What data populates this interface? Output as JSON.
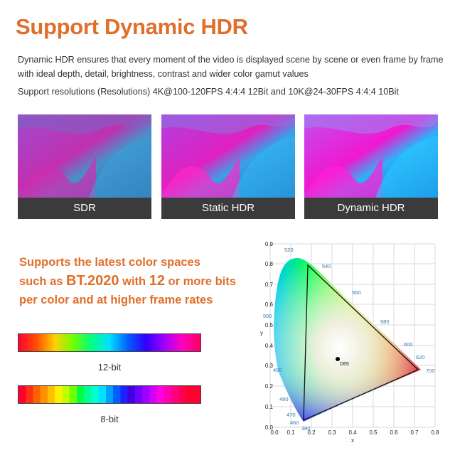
{
  "header": {
    "title": "Support Dynamic HDR",
    "description": "Dynamic HDR ensures that every moment of the video is displayed scene by scene or even frame by frame with ideal depth, detail, brightness, contrast and wider color gamut values",
    "resolutions": "Support resolutions (Resolutions) 4K@100-120FPS 4:4:4 12Bit and 10K@24-30FPS 4:4:4 10Bit"
  },
  "panels": [
    {
      "label": "SDR"
    },
    {
      "label": "Static HDR"
    },
    {
      "label": "Dynamic HDR"
    }
  ],
  "colorspace": {
    "line1": "Supports the latest color spaces",
    "line2a": "such as ",
    "line2b": "BT.2020",
    "line2c": " with ",
    "line2d": "12",
    "line2e": " or more bits",
    "line3": "per color and at higher frame rates"
  },
  "bars": {
    "bit12_label": "12-bit",
    "bit8_label": "8-bit"
  },
  "cie": {
    "x_axis_label": "x",
    "y_axis_label": "y",
    "x_ticks": [
      "0.0",
      "0.1",
      "0.2",
      "0.3",
      "0.4",
      "0.5",
      "0.6",
      "0.7",
      "0.8"
    ],
    "y_ticks": [
      "0.0",
      "0.1",
      "0.2",
      "0.3",
      "0.4",
      "0.5",
      "0.6",
      "0.7",
      "0.8",
      "0.9"
    ],
    "wavelengths": [
      "380",
      "460",
      "470",
      "480",
      "490",
      "500",
      "520",
      "540",
      "560",
      "580",
      "600",
      "620",
      "700"
    ],
    "whitepoint_label": "D65"
  }
}
